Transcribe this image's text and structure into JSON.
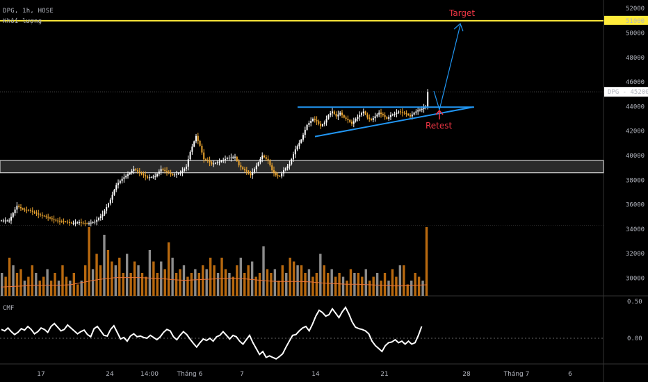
{
  "header": {
    "symbol_line": "DPG, 1h, HOSE",
    "volume_label": "Khối lượng"
  },
  "cmf_label": "CMF",
  "colors": {
    "up": "#ffffff",
    "down": "#f0a830",
    "vol_up": "#8c8c8c",
    "vol_down": "#b8690f",
    "target_line": "#ffeb3b",
    "trend": "#2196f3",
    "annotation": "#f23645",
    "vol_ma": "#e8743b"
  },
  "chart_data": [
    {
      "type": "candlestick",
      "y_ticks": [
        "52000",
        "50000",
        "48000",
        "46000",
        "44000",
        "42000",
        "40000",
        "38000",
        "36000",
        "34000",
        "32000",
        "30000"
      ],
      "ylim": [
        29000,
        52400
      ],
      "x_ticks": [
        "17",
        "24",
        "14:00",
        "Tháng 6",
        "7",
        "14",
        "21",
        "28",
        "Tháng 7",
        "6"
      ],
      "last_price_label": "DPG - 45200",
      "last_price": 45200,
      "target_line_label": "51000",
      "target_level": 51000,
      "support_zone": [
        38600,
        39600
      ],
      "triangle": {
        "resistance": 43950,
        "support_start": 41550,
        "support_end": 43950
      },
      "annotations": {
        "target": "Target",
        "retest": "Retest"
      },
      "close_path": [
        [
          0,
          34700
        ],
        [
          4,
          34700
        ],
        [
          8,
          35900
        ],
        [
          11,
          35600
        ],
        [
          15,
          35500
        ],
        [
          19,
          35200
        ],
        [
          23,
          35000
        ],
        [
          28,
          34700
        ],
        [
          33,
          34600
        ],
        [
          36,
          34500
        ],
        [
          40,
          34550
        ],
        [
          44,
          34450
        ],
        [
          48,
          34600
        ],
        [
          52,
          35200
        ],
        [
          56,
          36400
        ],
        [
          59,
          37600
        ],
        [
          62,
          38100
        ],
        [
          66,
          38600
        ],
        [
          68,
          38900
        ],
        [
          72,
          38500
        ],
        [
          75,
          38200
        ],
        [
          79,
          38300
        ],
        [
          82,
          38900
        ],
        [
          86,
          38600
        ],
        [
          88,
          38400
        ],
        [
          92,
          38600
        ],
        [
          95,
          39100
        ],
        [
          97,
          40300
        ],
        [
          100,
          41600
        ],
        [
          102,
          40800
        ],
        [
          104,
          39700
        ],
        [
          106,
          39600
        ],
        [
          108,
          39300
        ],
        [
          112,
          39500
        ],
        [
          116,
          39800
        ],
        [
          120,
          39900
        ],
        [
          122,
          39200
        ],
        [
          124,
          38900
        ],
        [
          126,
          38700
        ],
        [
          128,
          38400
        ],
        [
          130,
          38900
        ],
        [
          134,
          40000
        ],
        [
          137,
          39600
        ],
        [
          139,
          38800
        ],
        [
          141,
          38400
        ],
        [
          143,
          38300
        ],
        [
          145,
          38800
        ],
        [
          148,
          39300
        ],
        [
          151,
          40500
        ],
        [
          154,
          41300
        ],
        [
          157,
          42500
        ],
        [
          160,
          43000
        ],
        [
          162,
          42800
        ],
        [
          164,
          42400
        ],
        [
          166,
          42700
        ],
        [
          168,
          43300
        ],
        [
          170,
          43600
        ],
        [
          172,
          43200
        ],
        [
          174,
          43500
        ],
        [
          176,
          43100
        ],
        [
          178,
          42900
        ],
        [
          180,
          42600
        ],
        [
          182,
          43000
        ],
        [
          184,
          43300
        ],
        [
          186,
          43600
        ],
        [
          188,
          43100
        ],
        [
          190,
          42900
        ],
        [
          192,
          43200
        ],
        [
          194,
          43500
        ],
        [
          196,
          43300
        ],
        [
          198,
          43000
        ],
        [
          200,
          43300
        ],
        [
          202,
          43400
        ],
        [
          204,
          43600
        ],
        [
          206,
          43500
        ],
        [
          208,
          43400
        ],
        [
          210,
          43200
        ],
        [
          212,
          43500
        ],
        [
          214,
          43700
        ],
        [
          216,
          43800
        ],
        [
          218,
          44000
        ],
        [
          219,
          45200
        ]
      ]
    },
    {
      "type": "bar",
      "name": "Khối lượng",
      "values": [
        3,
        2.5,
        5,
        4,
        3,
        3.5,
        2,
        2.5,
        4,
        3,
        2,
        2.5,
        3.5,
        2,
        3,
        2,
        4,
        2.5,
        2,
        3,
        1.5,
        2,
        4,
        9,
        3.5,
        5.5,
        4,
        8,
        6,
        4.5,
        4,
        5,
        3,
        5.5,
        3,
        4.5,
        4,
        3,
        2.5,
        6,
        4.5,
        3,
        4.5,
        3.5,
        7,
        5,
        3,
        3.5,
        4,
        2.5,
        3,
        3.5,
        3,
        4,
        3.5,
        5,
        4,
        3,
        5,
        3.5,
        3,
        2.5,
        4,
        5,
        3,
        4,
        4.5,
        2.5,
        3,
        6.5,
        3.5,
        3,
        3.5,
        2,
        4,
        3,
        5,
        4.5,
        4,
        4,
        3,
        3.5,
        2.5,
        3,
        5.5,
        4,
        3,
        3.5,
        2.5,
        3,
        2.5,
        2,
        3.5,
        3,
        3,
        2.5,
        3.5,
        2,
        2.5,
        3,
        2,
        3,
        2,
        3.5,
        2.5,
        4,
        4,
        1.5,
        2,
        3,
        2.5,
        2,
        9
      ],
      "ma_values": [
        1.6,
        1.7,
        1.8,
        1.9,
        1.9,
        1.9,
        2.0,
        2.4,
        2.8,
        3.1,
        3.3,
        3.3,
        3.3,
        3.2,
        3.1,
        2.9,
        2.8,
        2.9,
        3.0,
        3.1,
        3.2,
        3.1,
        2.9,
        2.7,
        2.6,
        2.6,
        2.6,
        2.5,
        2.3,
        2.2,
        2.1,
        2.1,
        2.0,
        1.9,
        1.8,
        1.8,
        1.9,
        2.0
      ]
    },
    {
      "type": "line",
      "name": "CMF",
      "y_ticks": [
        "0.50",
        "0.00"
      ],
      "ylim": [
        -0.35,
        0.52
      ],
      "values": [
        0.12,
        0.1,
        0.14,
        0.09,
        0.05,
        0.08,
        0.13,
        0.11,
        0.16,
        0.12,
        0.06,
        0.09,
        0.14,
        0.12,
        0.08,
        0.16,
        0.2,
        0.15,
        0.1,
        0.12,
        0.18,
        0.14,
        0.1,
        0.06,
        0.09,
        0.11,
        0.05,
        0.02,
        0.13,
        0.16,
        0.1,
        0.04,
        0.03,
        0.12,
        0.17,
        0.08,
        -0.01,
        0.01,
        -0.04,
        0.03,
        0.06,
        0.02,
        0.03,
        0.01,
        0.0,
        0.04,
        0.01,
        -0.02,
        0.02,
        0.08,
        0.12,
        0.1,
        0.02,
        -0.02,
        0.04,
        0.09,
        0.05,
        -0.01,
        -0.07,
        -0.12,
        -0.06,
        -0.01,
        -0.03,
        0.0,
        -0.04,
        0.02,
        0.04,
        0.09,
        0.04,
        -0.01,
        0.04,
        0.02,
        -0.04,
        -0.08,
        -0.02,
        0.04,
        -0.06,
        -0.14,
        -0.22,
        -0.18,
        -0.26,
        -0.24,
        -0.26,
        -0.28,
        -0.25,
        -0.21,
        -0.12,
        -0.04,
        0.04,
        0.05,
        0.1,
        0.14,
        0.16,
        0.1,
        0.19,
        0.3,
        0.38,
        0.35,
        0.3,
        0.32,
        0.4,
        0.34,
        0.28,
        0.36,
        0.42,
        0.33,
        0.22,
        0.15,
        0.13,
        0.12,
        0.1,
        0.06,
        -0.04,
        -0.1,
        -0.14,
        -0.18,
        -0.1,
        -0.06,
        -0.05,
        -0.02,
        -0.06,
        -0.04,
        -0.08,
        -0.04,
        -0.08,
        -0.06,
        0.04,
        0.16
      ]
    }
  ]
}
